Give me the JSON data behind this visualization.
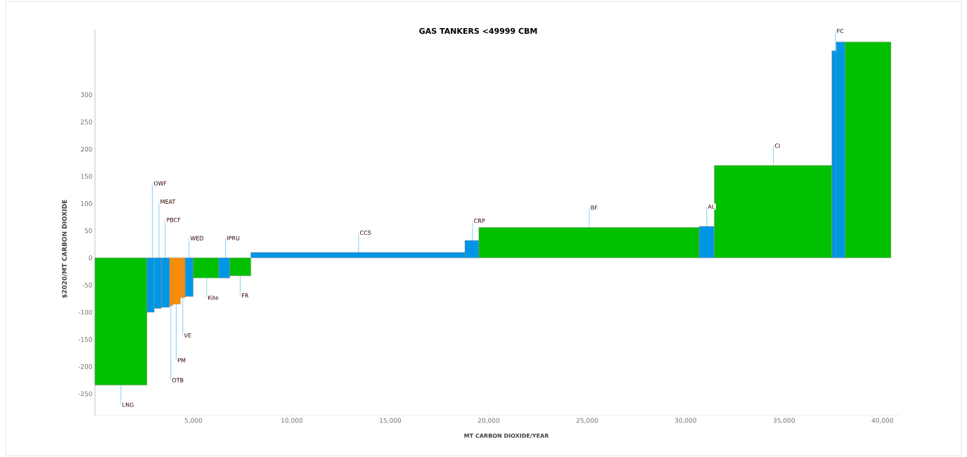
{
  "chart_data": {
    "type": "histogram",
    "title": "GAS TANKERS <49999 CBM",
    "xlabel": "MT CARBON DIOXIDE/YEAR",
    "ylabel": "$2020/MT CARBON DIOXIDE",
    "bins": [
      0,
      2640,
      3010,
      3370,
      3790,
      3960,
      4340,
      4580,
      4990,
      6290,
      6850,
      7920,
      18790,
      19500,
      30690,
      31460,
      37430,
      37650,
      38100,
      40430
    ],
    "values": [
      -234,
      -100,
      -93,
      -91,
      -88,
      -85,
      -73,
      -71,
      -37,
      -37,
      -33,
      10,
      32,
      56,
      58,
      170,
      381,
      397,
      397
    ],
    "colors": [
      "#00c000",
      "#0096e6",
      "#0096e6",
      "#0096e6",
      "#ff8c00",
      "#ff8c00",
      "#ff8c00",
      "#0096e6",
      "#00c000",
      "#0096e6",
      "#00c000",
      "#0096e6",
      "#0096e6",
      "#00c000",
      "#0096e6",
      "#00c000",
      "#0096e6",
      "#0096e6",
      "#00c000"
    ],
    "xlim": [
      0,
      40900
    ],
    "ylim": [
      -290,
      420
    ],
    "xticks": [
      {
        "value": 5000,
        "label": "5,000"
      },
      {
        "value": 10000,
        "label": "10,000"
      },
      {
        "value": 15000,
        "label": "15,000"
      },
      {
        "value": 20000,
        "label": "20,000"
      },
      {
        "value": 25000,
        "label": "25,000"
      },
      {
        "value": 30000,
        "label": "30,000"
      },
      {
        "value": 35000,
        "label": "35,000"
      },
      {
        "value": 40000,
        "label": "40,000"
      }
    ],
    "yticks": [
      -250,
      -200,
      -150,
      -100,
      -50,
      0,
      50,
      100,
      150,
      200,
      250,
      300
    ],
    "annotations": [
      {
        "text": "LNG",
        "x": 1320,
        "y": -234
      },
      {
        "text": "OWF",
        "x": 2920,
        "y": 0
      },
      {
        "text": "MEAT",
        "x": 3250,
        "y": 0
      },
      {
        "text": "PBCF",
        "x": 3570,
        "y": 0
      },
      {
        "text": "OTB",
        "x": 3850,
        "y": -88
      },
      {
        "text": "PM",
        "x": 4130,
        "y": -85
      },
      {
        "text": "VE",
        "x": 4460,
        "y": -73
      },
      {
        "text": "WED",
        "x": 4780,
        "y": 0
      },
      {
        "text": "Kite",
        "x": 5670,
        "y": -37
      },
      {
        "text": "IPRU",
        "x": 6630,
        "y": 0
      },
      {
        "text": "FR",
        "x": 7380,
        "y": -33
      },
      {
        "text": "CCS",
        "x": 13390,
        "y": 10
      },
      {
        "text": "CRP",
        "x": 19180,
        "y": 32
      },
      {
        "text": "BF",
        "x": 25110,
        "y": 56
      },
      {
        "text": "AL",
        "x": 31070,
        "y": 58
      },
      {
        "text": "CI",
        "x": 34460,
        "y": 170
      },
      {
        "text": "FC",
        "x": 37610,
        "y": 381
      }
    ]
  }
}
